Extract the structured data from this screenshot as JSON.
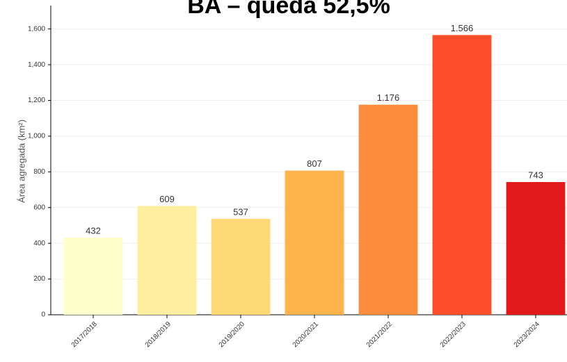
{
  "chart_data": {
    "type": "bar",
    "title": "BA – queda 52,5%",
    "y_label": "Área agregada (km²)",
    "categories": [
      "2017/2018",
      "2018/2019",
      "2019/2020",
      "2020/2021",
      "2021/2022",
      "2022/2023",
      "2023/2024"
    ],
    "values": [
      432,
      609,
      537,
      807,
      1176,
      1566,
      743
    ],
    "value_labels": [
      "432",
      "609",
      "537",
      "807",
      "1.176",
      "1.566",
      "743"
    ],
    "colors": [
      "#ffffcc",
      "#ffeda0",
      "#fed976",
      "#feb24c",
      "#fd8d3c",
      "#fc4e2a",
      "#e31a1c"
    ],
    "ylim": [
      0,
      1700
    ],
    "yticks": [
      0,
      200,
      400,
      600,
      800,
      {
        "value": 1000,
        "label": "1,000"
      },
      {
        "value": 1200,
        "label": "1,200"
      },
      {
        "value": 1400,
        "label": "1,400"
      },
      {
        "value": 1600,
        "label": "1,600"
      }
    ],
    "grid": true
  }
}
